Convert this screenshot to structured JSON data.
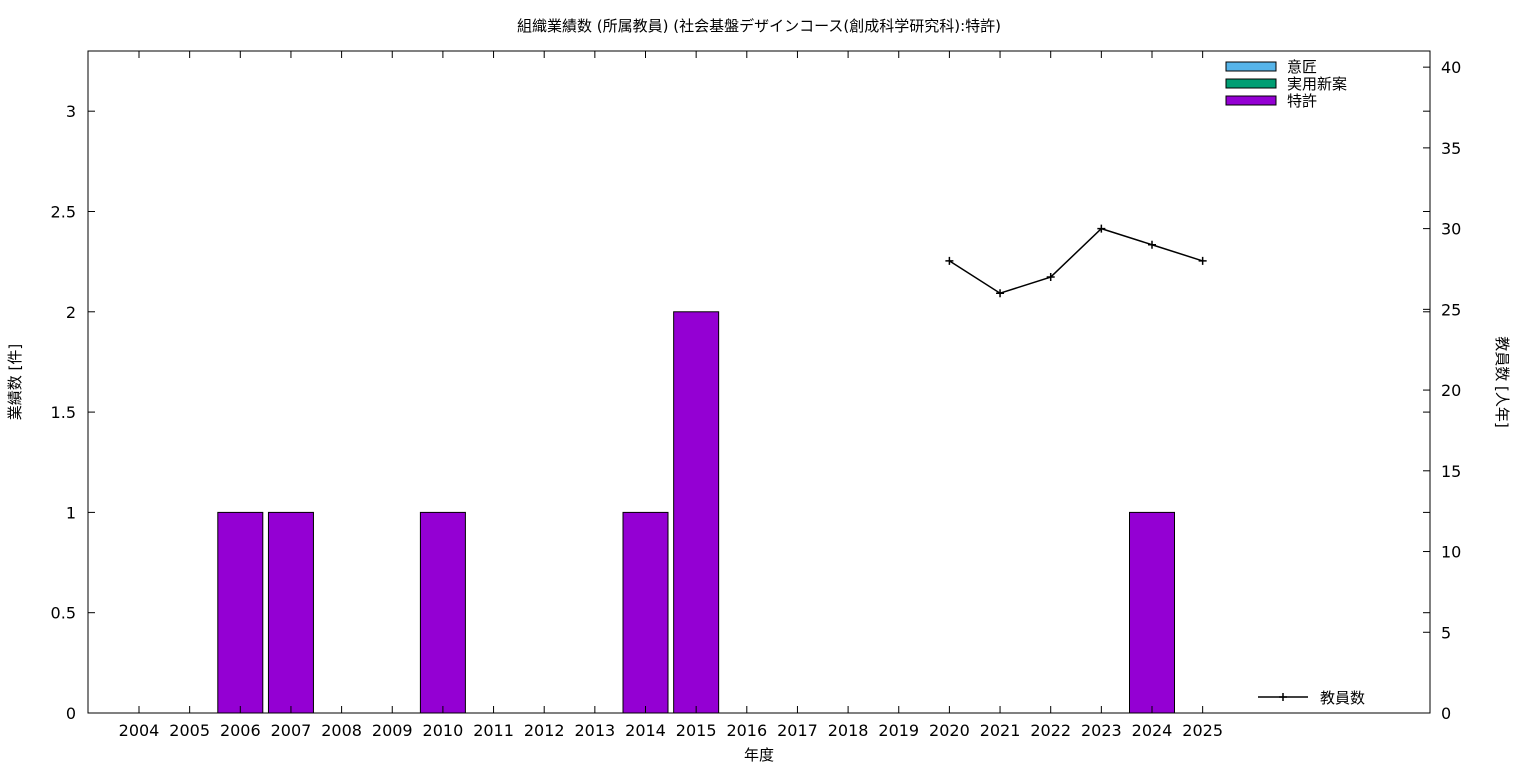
{
  "chart_data": {
    "type": "bar",
    "title": "組織業績数 (所属教員) (社会基盤デザインコース(創成科学研究科):特許)",
    "xlabel": "年度",
    "ylabel": "業績数 [件]",
    "y2label": "教員数 [人年]",
    "categories": [
      "2004",
      "2005",
      "2006",
      "2007",
      "2008",
      "2009",
      "2010",
      "2011",
      "2012",
      "2013",
      "2014",
      "2015",
      "2016",
      "2017",
      "2018",
      "2019",
      "2020",
      "2021",
      "2022",
      "2023",
      "2024",
      "2025"
    ],
    "ylim": [
      0,
      3.3
    ],
    "y2lim": [
      0,
      41
    ],
    "yticks": [
      "0",
      "0.5",
      "1",
      "1.5",
      "2",
      "2.5",
      "3"
    ],
    "y2ticks": [
      "0",
      "5",
      "10",
      "15",
      "20",
      "25",
      "30",
      "35",
      "40"
    ],
    "series": [
      {
        "name": "意匠",
        "color": "#56b4e9",
        "values": [
          0,
          0,
          0,
          0,
          0,
          0,
          0,
          0,
          0,
          0,
          0,
          0,
          0,
          0,
          0,
          0,
          0,
          0,
          0,
          0,
          0,
          0
        ]
      },
      {
        "name": "実用新案",
        "color": "#009e73",
        "values": [
          0,
          0,
          0,
          0,
          0,
          0,
          0,
          0,
          0,
          0,
          0,
          0,
          0,
          0,
          0,
          0,
          0,
          0,
          0,
          0,
          0,
          0
        ]
      },
      {
        "name": "特許",
        "color": "#9400d3",
        "values": [
          0,
          0,
          1,
          1,
          0,
          0,
          1,
          0,
          0,
          0,
          1,
          2,
          0,
          0,
          0,
          0,
          0,
          0,
          0,
          0,
          1,
          0
        ]
      }
    ],
    "line_series": {
      "name": "教員数",
      "axis": "y2",
      "color": "#000000",
      "x": [
        "2020",
        "2021",
        "2022",
        "2023",
        "2024",
        "2025"
      ],
      "values": [
        28,
        26,
        27,
        30,
        29,
        28
      ]
    },
    "legend_position": "top-right",
    "line_legend_position": "bottom-right",
    "grid": false
  }
}
